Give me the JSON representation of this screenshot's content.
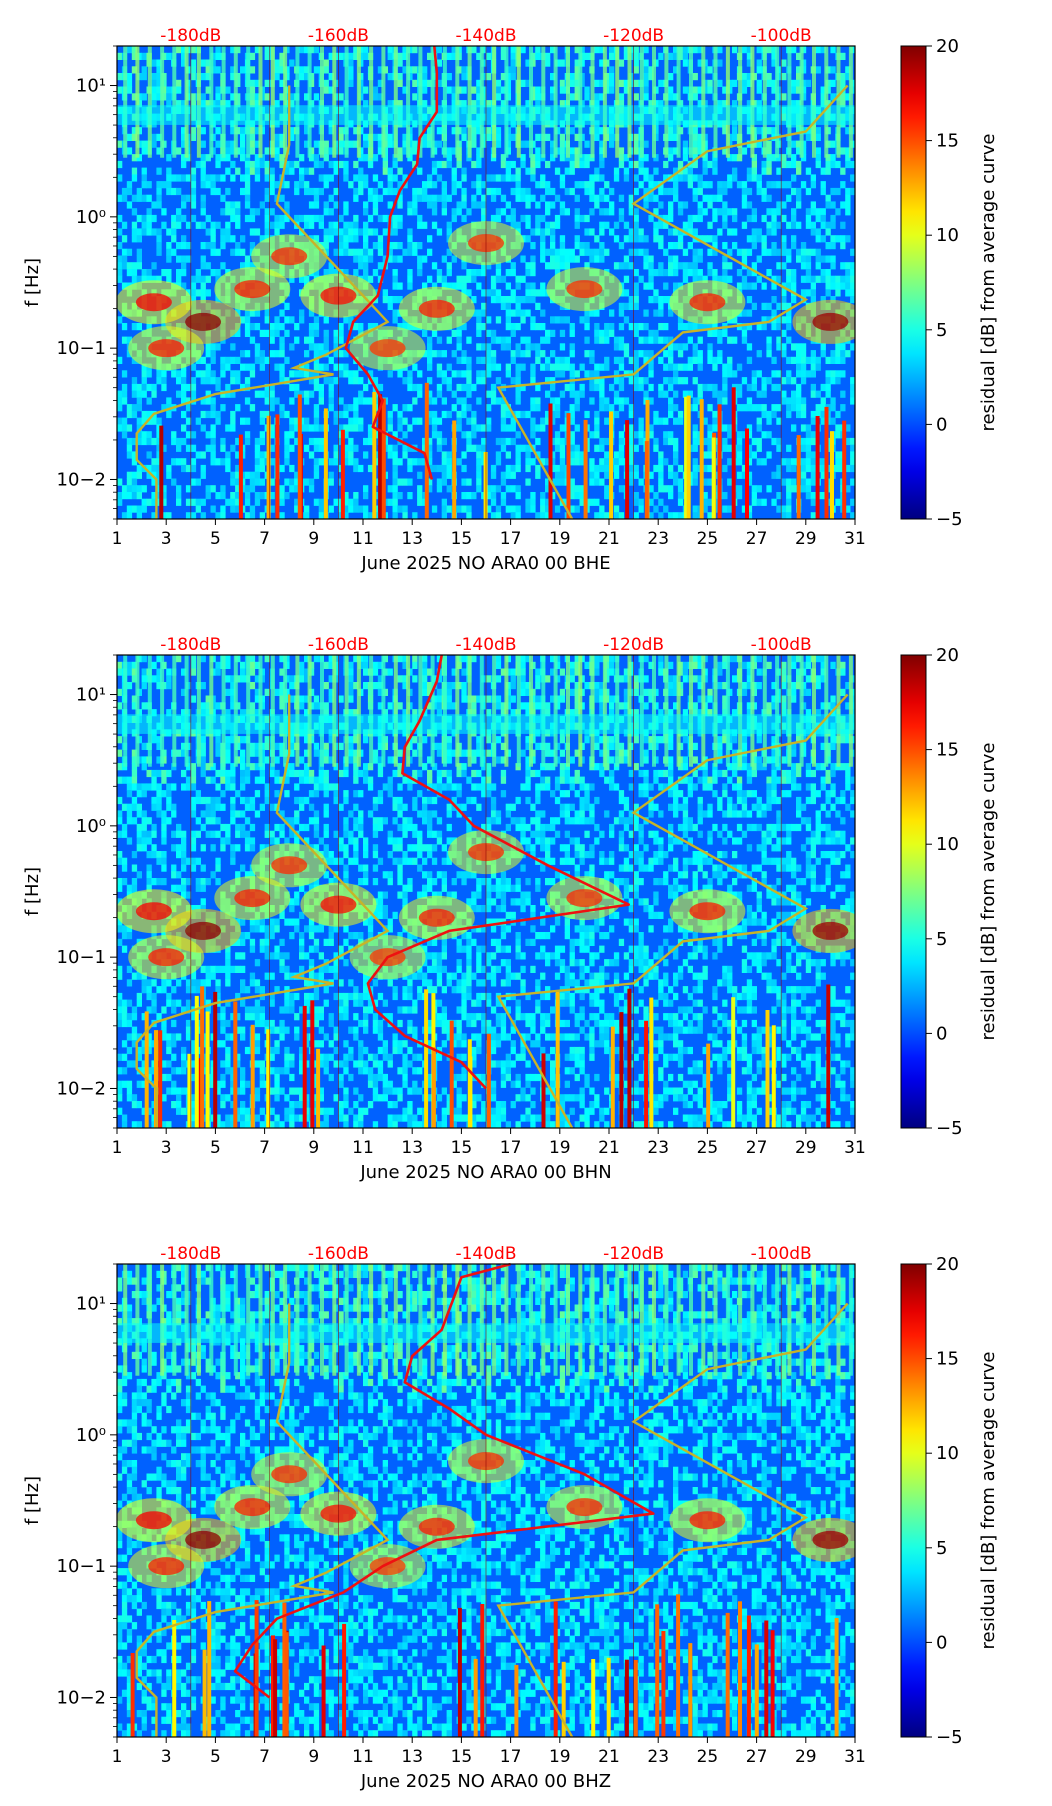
{
  "chart_data": [
    {
      "type": "heatmap",
      "xlabel": "June 2025 NO ARA0 00 BHE",
      "ylabel": "f [Hz]",
      "colorbar_label": "residual [dB] from average curve",
      "x_ticks": [
        "1",
        "3",
        "5",
        "7",
        "9",
        "11",
        "13",
        "15",
        "17",
        "19",
        "21",
        "23",
        "25",
        "27",
        "29",
        "31"
      ],
      "xlim": [
        1,
        31
      ],
      "y_ticks": [
        "10−2",
        "10−1",
        "10⁰",
        "10¹"
      ],
      "ylim_hz": [
        0.005,
        20
      ],
      "colorbar_ticks": [
        "−5",
        "0",
        "5",
        "10",
        "15",
        "20"
      ],
      "colorbar_range": [
        -5,
        20
      ],
      "db_scale_labels": [
        "-180dB",
        "-160dB",
        "-140dB",
        "-120dB",
        "-100dB"
      ],
      "db_scale_days": [
        4,
        10,
        16,
        22,
        28
      ],
      "reference_curves_color": "#c8b428",
      "median_curve_color": "#ee1111",
      "median_curve_days_by_logfreq": [
        [
          1.3,
          13.9
        ],
        [
          1.1,
          14.0
        ],
        [
          0.8,
          14.0
        ],
        [
          0.6,
          13.3
        ],
        [
          0.4,
          13.2
        ],
        [
          0.2,
          12.5
        ],
        [
          0.0,
          12.1
        ],
        [
          -0.3,
          12.0
        ],
        [
          -0.6,
          11.6
        ],
        [
          -0.8,
          10.6
        ],
        [
          -1.0,
          10.3
        ],
        [
          -1.2,
          11.2
        ],
        [
          -1.4,
          11.8
        ],
        [
          -1.6,
          11.4
        ],
        [
          -1.8,
          13.5
        ],
        [
          -2.0,
          13.8
        ]
      ]
    },
    {
      "type": "heatmap",
      "xlabel": "June 2025 NO ARA0 00 BHN",
      "ylabel": "f [Hz]",
      "colorbar_label": "residual [dB] from average curve",
      "x_ticks": [
        "1",
        "3",
        "5",
        "7",
        "9",
        "11",
        "13",
        "15",
        "17",
        "19",
        "21",
        "23",
        "25",
        "27",
        "29",
        "31"
      ],
      "xlim": [
        1,
        31
      ],
      "y_ticks": [
        "10−2",
        "10−1",
        "10⁰",
        "10¹"
      ],
      "ylim_hz": [
        0.005,
        20
      ],
      "colorbar_ticks": [
        "−5",
        "0",
        "5",
        "10",
        "15",
        "20"
      ],
      "colorbar_range": [
        -5,
        20
      ],
      "db_scale_labels": [
        "-180dB",
        "-160dB",
        "-140dB",
        "-120dB",
        "-100dB"
      ],
      "db_scale_days": [
        4,
        10,
        16,
        22,
        28
      ],
      "reference_curves_color": "#c8b428",
      "median_curve_color": "#ee1111",
      "median_curve_days_by_logfreq": [
        [
          1.3,
          14.2
        ],
        [
          1.1,
          14.0
        ],
        [
          0.8,
          13.3
        ],
        [
          0.6,
          12.7
        ],
        [
          0.4,
          12.6
        ],
        [
          0.2,
          14.5
        ],
        [
          0.0,
          15.5
        ],
        [
          -0.3,
          18.5
        ],
        [
          -0.6,
          21.8
        ],
        [
          -0.8,
          14.5
        ],
        [
          -1.0,
          12.0
        ],
        [
          -1.2,
          11.2
        ],
        [
          -1.4,
          11.5
        ],
        [
          -1.6,
          12.7
        ],
        [
          -1.8,
          15.0
        ],
        [
          -2.0,
          16.0
        ]
      ]
    },
    {
      "type": "heatmap",
      "xlabel": "June 2025 NO ARA0 00 BHZ",
      "ylabel": "f [Hz]",
      "colorbar_label": "residual [dB] from average curve",
      "x_ticks": [
        "1",
        "3",
        "5",
        "7",
        "9",
        "11",
        "13",
        "15",
        "17",
        "19",
        "21",
        "23",
        "25",
        "27",
        "29",
        "31"
      ],
      "xlim": [
        1,
        31
      ],
      "y_ticks": [
        "10−2",
        "10−1",
        "10⁰",
        "10¹"
      ],
      "ylim_hz": [
        0.005,
        20
      ],
      "colorbar_ticks": [
        "−5",
        "0",
        "5",
        "10",
        "15",
        "20"
      ],
      "colorbar_range": [
        -5,
        20
      ],
      "db_scale_labels": [
        "-180dB",
        "-160dB",
        "-140dB",
        "-120dB",
        "-100dB"
      ],
      "db_scale_days": [
        4,
        10,
        16,
        22,
        28
      ],
      "reference_curves_color": "#c8b428",
      "median_curve_color": "#ee1111",
      "median_curve_days_by_logfreq": [
        [
          1.3,
          17.0
        ],
        [
          1.2,
          15.0
        ],
        [
          1.0,
          14.6
        ],
        [
          0.8,
          14.2
        ],
        [
          0.6,
          13.0
        ],
        [
          0.4,
          12.7
        ],
        [
          0.2,
          14.5
        ],
        [
          0.0,
          16.0
        ],
        [
          -0.3,
          20.0
        ],
        [
          -0.6,
          22.8
        ],
        [
          -0.8,
          14.0
        ],
        [
          -1.0,
          11.8
        ],
        [
          -1.2,
          10.2
        ],
        [
          -1.4,
          7.5
        ],
        [
          -1.6,
          6.5
        ],
        [
          -1.8,
          5.8
        ],
        [
          -2.0,
          7.2
        ]
      ]
    }
  ]
}
